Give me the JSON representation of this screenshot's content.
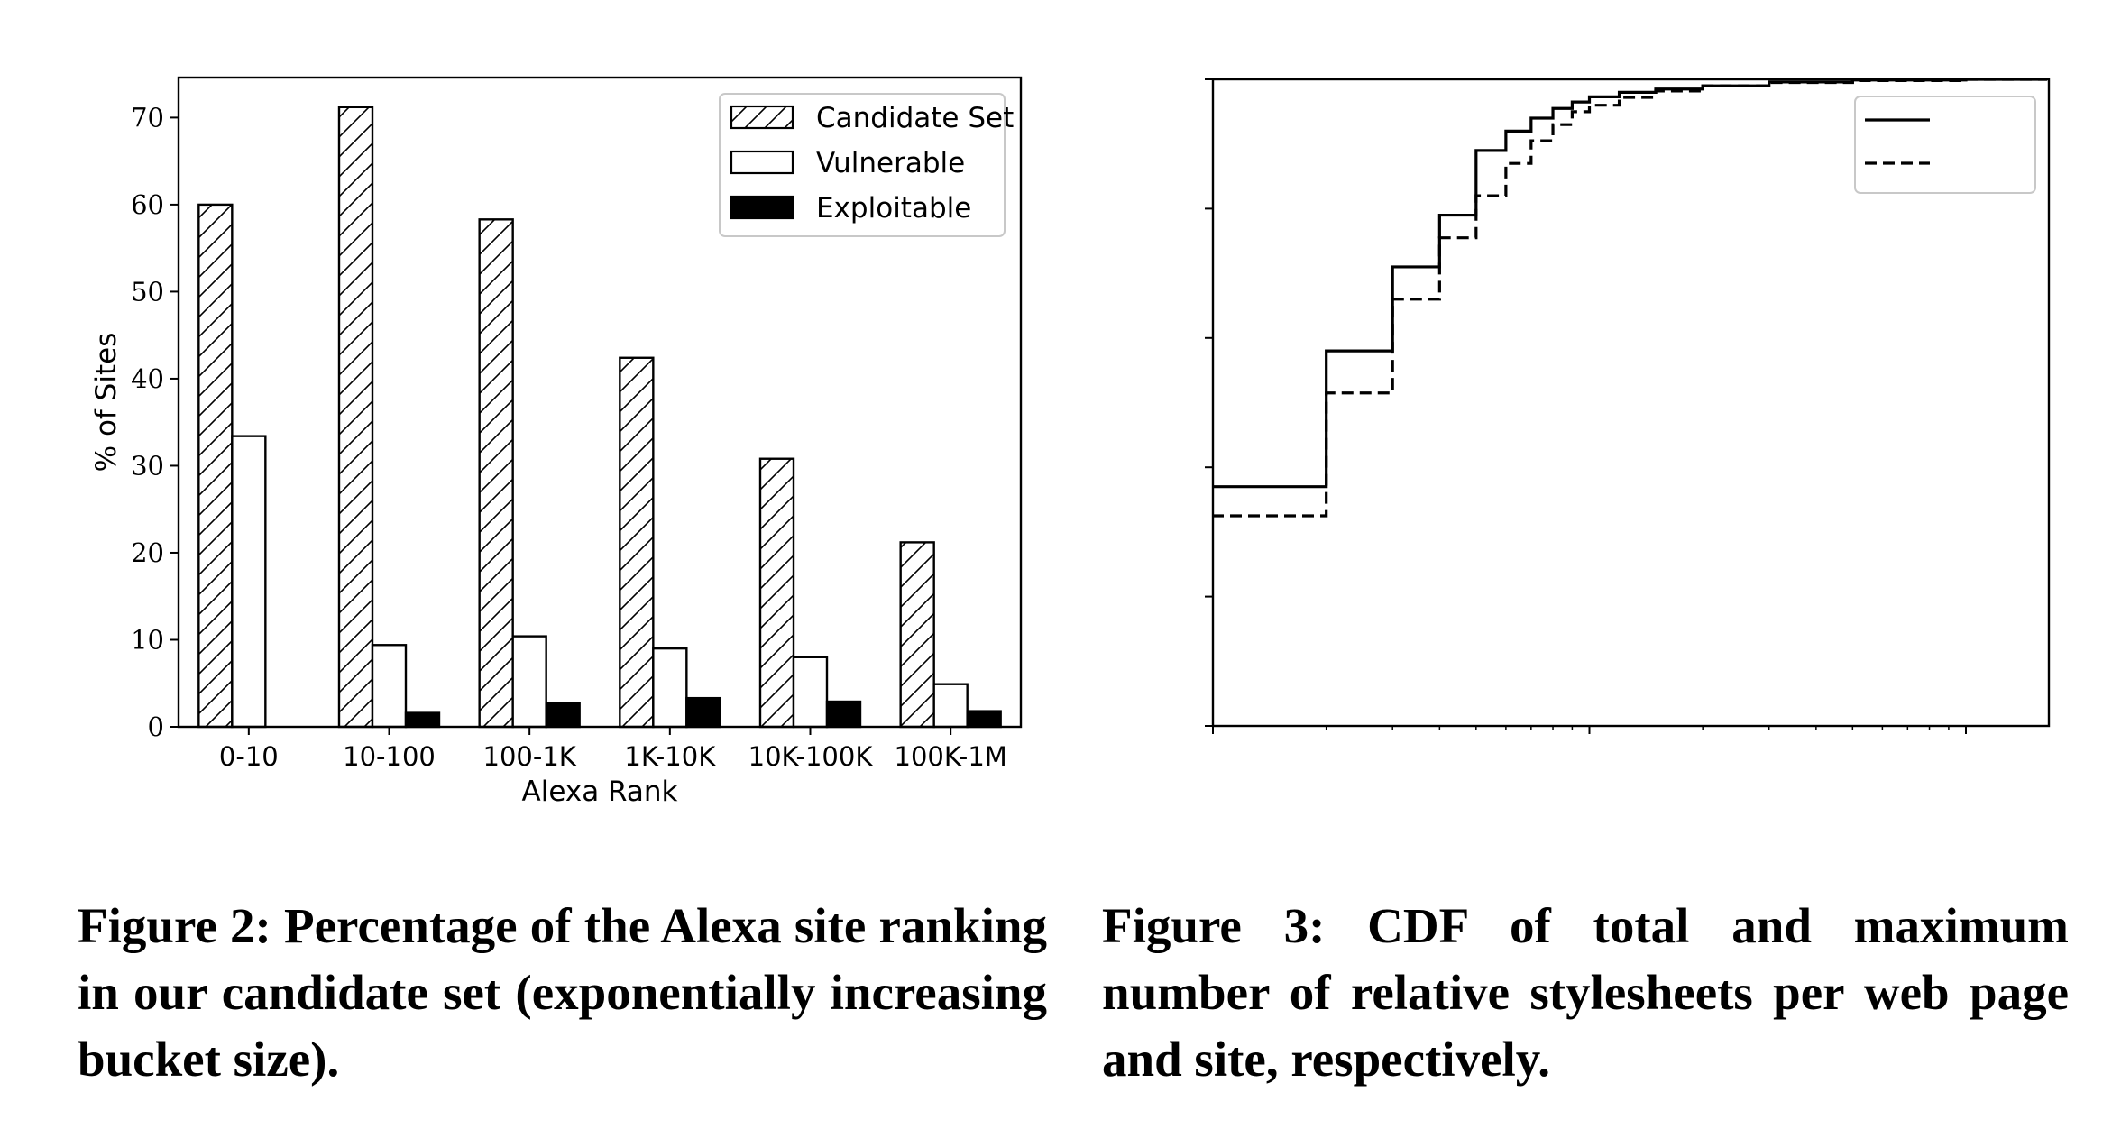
{
  "captions": {
    "fig2": "Figure 2: Percentage of the Alexa site ranking in our candidate set (exponen­tially increasing bucket size).",
    "fig3": "Figure 3: CDF of total and maximum number of relative stylesheets per web page and site, respectively."
  },
  "chart_data": [
    {
      "type": "bar",
      "title": "",
      "xlabel": "Alexa Rank",
      "ylabel": "% of Sites",
      "categories": [
        "0-10",
        "10-100",
        "100-1K",
        "1K-10K",
        "10K-100K",
        "100K-1M"
      ],
      "series": [
        {
          "name": "Candidate Set",
          "values": [
            60.0,
            71.2,
            58.3,
            42.4,
            30.8,
            21.2
          ],
          "fill": "hatch"
        },
        {
          "name": "Vulnerable",
          "values": [
            33.4,
            9.4,
            10.4,
            9.0,
            8.0,
            4.9
          ],
          "fill": "#ffffff"
        },
        {
          "name": "Exploitable",
          "values": [
            0.0,
            1.6,
            2.7,
            3.3,
            2.9,
            1.8
          ],
          "fill": "#000000"
        }
      ],
      "ylim": [
        0,
        74.6
      ],
      "yticks": [
        0,
        10,
        20,
        30,
        40,
        50,
        60,
        70
      ],
      "legend": "top-right",
      "grid": false
    },
    {
      "type": "line",
      "title": "",
      "xlabel": "",
      "ylabel": "",
      "x_scale": "log",
      "xlim": [
        1,
        10000
      ],
      "ylim": [
        0,
        1
      ],
      "grid": false,
      "legend": "top-right",
      "series": [
        {
          "name": "",
          "style": "solid",
          "points": [
            [
              1,
              0.37
            ],
            [
              2,
              0.58
            ],
            [
              3,
              0.71
            ],
            [
              4,
              0.79
            ],
            [
              5,
              0.89
            ],
            [
              6,
              0.92
            ],
            [
              7,
              0.94
            ],
            [
              8,
              0.955
            ],
            [
              9,
              0.965
            ],
            [
              10,
              0.973
            ],
            [
              12,
              0.98
            ],
            [
              15,
              0.985
            ],
            [
              20,
              0.99
            ],
            [
              30,
              0.996
            ],
            [
              50,
              0.999
            ],
            [
              100,
              1.0
            ],
            [
              10000,
              1.0
            ]
          ]
        },
        {
          "name": "",
          "style": "dashed",
          "points": [
            [
              1,
              0.325
            ],
            [
              2,
              0.515
            ],
            [
              3,
              0.66
            ],
            [
              4,
              0.755
            ],
            [
              5,
              0.82
            ],
            [
              6,
              0.87
            ],
            [
              7,
              0.905
            ],
            [
              8,
              0.93
            ],
            [
              9,
              0.95
            ],
            [
              10,
              0.96
            ],
            [
              12,
              0.972
            ],
            [
              15,
              0.982
            ],
            [
              20,
              0.99
            ],
            [
              30,
              0.995
            ],
            [
              50,
              0.998
            ],
            [
              100,
              1.0
            ],
            [
              10000,
              1.0
            ]
          ]
        }
      ]
    }
  ]
}
